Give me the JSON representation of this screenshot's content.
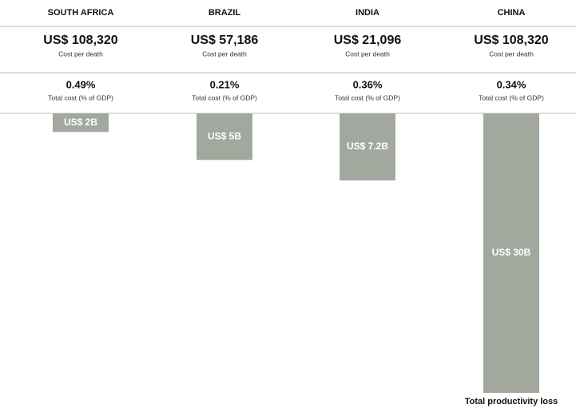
{
  "chart_data": {
    "type": "bar",
    "categories": [
      "SOUTH AFRICA",
      "BRAZIL",
      "INDIA",
      "CHINA"
    ],
    "cost_per_death": {
      "label": "Cost per death",
      "values": [
        "US$ 108,320",
        "US$ 57,186",
        "US$ 21,096",
        "US$ 108,320"
      ]
    },
    "gdp_share": {
      "label": "Total cost (% of GDP)",
      "values": [
        "0.49%",
        "0.21%",
        "0.36%",
        "0.34%"
      ]
    },
    "values": [
      2,
      5,
      7.2,
      30
    ],
    "value_labels": [
      "US$ 2B",
      "US$ 5B",
      "US$ 7.2B",
      "US$ 30B"
    ],
    "color": "#a3a89f",
    "annotation": "Total productivity loss"
  }
}
